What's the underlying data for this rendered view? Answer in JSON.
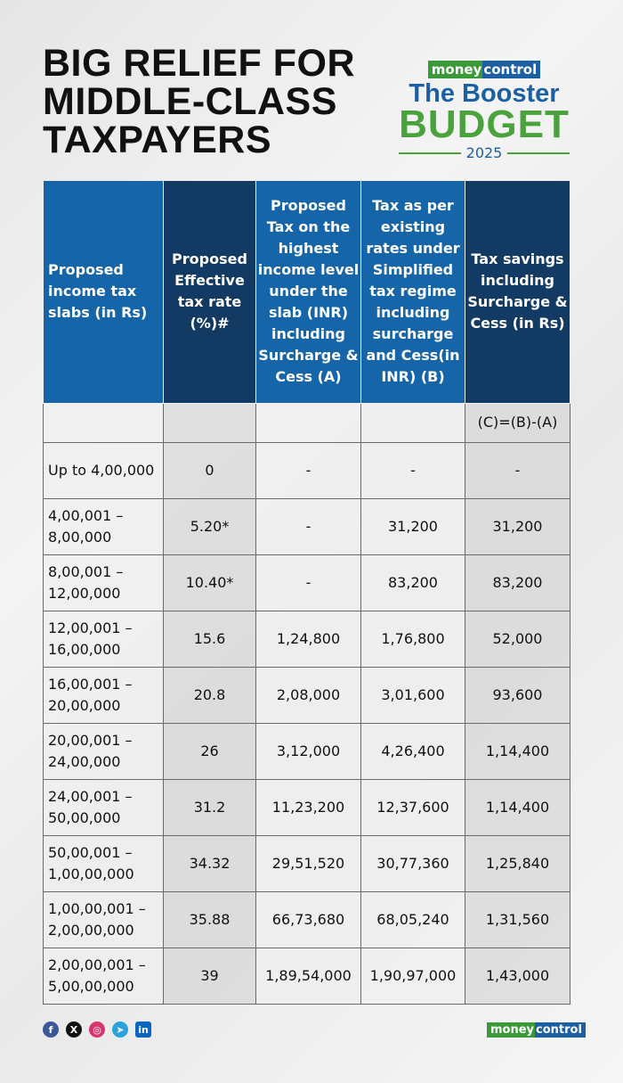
{
  "title": [
    "BIG RELIEF FOR",
    "MIDDLE-CLASS",
    "TAXPAYERS"
  ],
  "logo": {
    "brand_a": "money",
    "brand_b": "control",
    "line1": "The Booster",
    "line2": "BUDGET",
    "year": "2025"
  },
  "table": {
    "headers": [
      "Proposed income tax slabs (in Rs)",
      "Proposed Effective tax rate (%)#",
      "Proposed Tax on the highest income level under the slab (INR) including Surcharge & Cess (A)",
      "Tax as per existing rates under Simplified tax regime including surcharge and Cess(in INR) (B)",
      "Tax savings including Surcharge & Cess (in Rs)"
    ],
    "subheader": [
      "",
      "",
      "",
      "",
      "(C)=(B)-(A)"
    ],
    "rows": [
      [
        "Up to 4,00,000",
        "0",
        "-",
        "-",
        "-"
      ],
      [
        "4,00,001 – 8,00,000",
        "5.20*",
        "-",
        "31,200",
        "31,200"
      ],
      [
        "8,00,001 – 12,00,000",
        "10.40*",
        "-",
        "83,200",
        "83,200"
      ],
      [
        "12,00,001 – 16,00,000",
        "15.6",
        "1,24,800",
        "1,76,800",
        "52,000"
      ],
      [
        "16,00,001 – 20,00,000",
        "20.8",
        "2,08,000",
        "3,01,600",
        "93,600"
      ],
      [
        "20,00,001 – 24,00,000",
        "26",
        "3,12,000",
        "4,26,400",
        "1,14,400"
      ],
      [
        "24,00,001 – 50,00,000",
        "31.2",
        "11,23,200",
        "12,37,600",
        "1,14,400"
      ],
      [
        "50,00,001 – 1,00,00,000",
        "34.32",
        "29,51,520",
        "30,77,360",
        "1,25,840"
      ],
      [
        "1,00,00,001 – 2,00,00,000",
        "35.88",
        "66,73,680",
        "68,05,240",
        "1,31,560"
      ],
      [
        "2,00,00,001 – 5,00,00,000",
        "39",
        "1,89,54,000",
        "1,90,97,000",
        "1,43,000"
      ]
    ]
  },
  "footer": {
    "social": [
      "facebook-icon",
      "x-icon",
      "instagram-icon",
      "telegram-icon",
      "linkedin-icon"
    ],
    "brand_a": "money",
    "brand_b": "control"
  },
  "colors": {
    "header_blue": "#1565a8",
    "header_navy": "#123a62",
    "green": "#4aa23c"
  }
}
